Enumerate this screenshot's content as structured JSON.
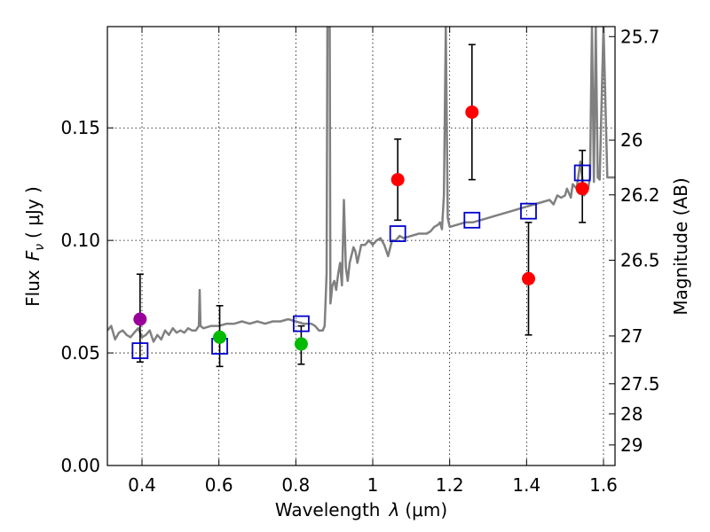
{
  "chart_data": {
    "type": "scatter",
    "xlabel": "Wavelength",
    "xlabel_symbol": "λ",
    "xlabel_unit": "(μm)",
    "ylabel": "Flux",
    "ylabel_symbol": "F",
    "ylabel_subscript": "ν",
    "ylabel_unit": "( μJy )",
    "y2label": "Magnitude (AB)",
    "xlim": [
      0.31,
      1.63
    ],
    "ylim": [
      0.0,
      0.195
    ],
    "grid": true,
    "x_ticks": [
      0.4,
      0.6,
      0.8,
      1.0,
      1.2,
      1.4,
      1.6
    ],
    "x_tick_labels": [
      "0.4",
      "0.6",
      "0.8",
      "1",
      "1.2",
      "1.4",
      "1.6"
    ],
    "y_ticks": [
      0.0,
      0.05,
      0.1,
      0.15
    ],
    "y_tick_labels": [
      "0.00",
      "0.05",
      "0.10",
      "0.15"
    ],
    "mag_ticks": [
      {
        "label": "25.7",
        "value": 25.7
      },
      {
        "label": "26",
        "value": 26.0
      },
      {
        "label": "26.2",
        "value": 26.2
      },
      {
        "label": "26.5",
        "value": 26.5
      },
      {
        "label": "27",
        "value": 27.0
      },
      {
        "label": "27.5",
        "value": 27.5
      },
      {
        "label": "28",
        "value": 28.0
      },
      {
        "label": "29",
        "value": 29.0
      }
    ],
    "series": [
      {
        "name": "photometry",
        "points": [
          {
            "x": 0.395,
            "y": 0.065,
            "yerr_low": 0.046,
            "yerr_high": 0.085,
            "color": "#990099"
          },
          {
            "x": 0.602,
            "y": 0.057,
            "yerr_low": 0.044,
            "yerr_high": 0.071,
            "color": "#00bb00"
          },
          {
            "x": 0.814,
            "y": 0.054,
            "yerr_low": 0.045,
            "yerr_high": 0.062,
            "color": "#00bb00"
          },
          {
            "x": 1.065,
            "y": 0.127,
            "yerr_low": 0.109,
            "yerr_high": 0.145,
            "color": "#ff0000"
          },
          {
            "x": 1.258,
            "y": 0.157,
            "yerr_low": 0.127,
            "yerr_high": 0.187,
            "color": "#ff0000"
          },
          {
            "x": 1.405,
            "y": 0.083,
            "yerr_low": 0.058,
            "yerr_high": 0.108,
            "color": "#ff0000"
          },
          {
            "x": 1.545,
            "y": 0.123,
            "yerr_low": 0.108,
            "yerr_high": 0.14,
            "color": "#ff0000"
          }
        ]
      },
      {
        "name": "model-bands",
        "color": "#0000cc",
        "points": [
          {
            "x": 0.395,
            "y": 0.051
          },
          {
            "x": 0.602,
            "y": 0.053
          },
          {
            "x": 0.814,
            "y": 0.063
          },
          {
            "x": 1.065,
            "y": 0.103
          },
          {
            "x": 1.258,
            "y": 0.109
          },
          {
            "x": 1.405,
            "y": 0.113
          },
          {
            "x": 1.545,
            "y": 0.13
          }
        ]
      },
      {
        "name": "model-spectrum",
        "color": "#808080",
        "x": [
          0.31,
          0.32,
          0.33,
          0.34,
          0.35,
          0.36,
          0.37,
          0.38,
          0.39,
          0.4,
          0.41,
          0.42,
          0.43,
          0.44,
          0.45,
          0.46,
          0.47,
          0.48,
          0.49,
          0.5,
          0.51,
          0.52,
          0.53,
          0.54,
          0.548,
          0.55,
          0.552,
          0.56,
          0.58,
          0.6,
          0.62,
          0.64,
          0.66,
          0.68,
          0.7,
          0.72,
          0.74,
          0.76,
          0.78,
          0.8,
          0.82,
          0.84,
          0.85,
          0.86,
          0.87,
          0.875,
          0.88,
          0.882,
          0.885,
          0.888,
          0.89,
          0.892,
          0.895,
          0.9,
          0.905,
          0.91,
          0.915,
          0.92,
          0.925,
          0.93,
          0.935,
          0.94,
          0.95,
          0.955,
          0.96,
          0.97,
          0.98,
          0.99,
          1.0,
          1.01,
          1.02,
          1.03,
          1.04,
          1.05,
          1.06,
          1.07,
          1.08,
          1.1,
          1.12,
          1.14,
          1.15,
          1.16,
          1.17,
          1.175,
          1.18,
          1.185,
          1.19,
          1.195,
          1.2,
          1.22,
          1.24,
          1.26,
          1.28,
          1.3,
          1.32,
          1.34,
          1.36,
          1.38,
          1.4,
          1.42,
          1.44,
          1.46,
          1.47,
          1.48,
          1.49,
          1.5,
          1.505,
          1.51,
          1.515,
          1.52,
          1.53,
          1.54,
          1.55,
          1.56,
          1.565,
          1.57,
          1.575,
          1.58,
          1.585,
          1.59,
          1.6,
          1.61,
          1.62,
          1.63
        ],
        "y": [
          0.06,
          0.062,
          0.056,
          0.059,
          0.06,
          0.058,
          0.057,
          0.059,
          0.061,
          0.057,
          0.058,
          0.06,
          0.055,
          0.058,
          0.056,
          0.06,
          0.058,
          0.061,
          0.059,
          0.06,
          0.059,
          0.061,
          0.06,
          0.06,
          0.062,
          0.078,
          0.062,
          0.061,
          0.062,
          0.062,
          0.063,
          0.063,
          0.064,
          0.063,
          0.064,
          0.063,
          0.064,
          0.064,
          0.065,
          0.064,
          0.063,
          0.063,
          0.062,
          0.06,
          0.06,
          0.062,
          0.085,
          0.195,
          0.195,
          0.195,
          0.072,
          0.075,
          0.08,
          0.082,
          0.078,
          0.085,
          0.09,
          0.08,
          0.118,
          0.088,
          0.082,
          0.09,
          0.097,
          0.095,
          0.09,
          0.098,
          0.098,
          0.1,
          0.098,
          0.1,
          0.101,
          0.098,
          0.093,
          0.1,
          0.1,
          0.102,
          0.101,
          0.102,
          0.103,
          0.103,
          0.104,
          0.106,
          0.107,
          0.108,
          0.105,
          0.12,
          0.195,
          0.11,
          0.106,
          0.107,
          0.108,
          0.108,
          0.109,
          0.11,
          0.111,
          0.112,
          0.113,
          0.114,
          0.115,
          0.116,
          0.117,
          0.118,
          0.116,
          0.12,
          0.119,
          0.12,
          0.123,
          0.121,
          0.119,
          0.125,
          0.123,
          0.135,
          0.12,
          0.123,
          0.128,
          0.195,
          0.126,
          0.195,
          0.128,
          0.127,
          0.195,
          0.128,
          0.128,
          0.128
        ]
      }
    ]
  }
}
